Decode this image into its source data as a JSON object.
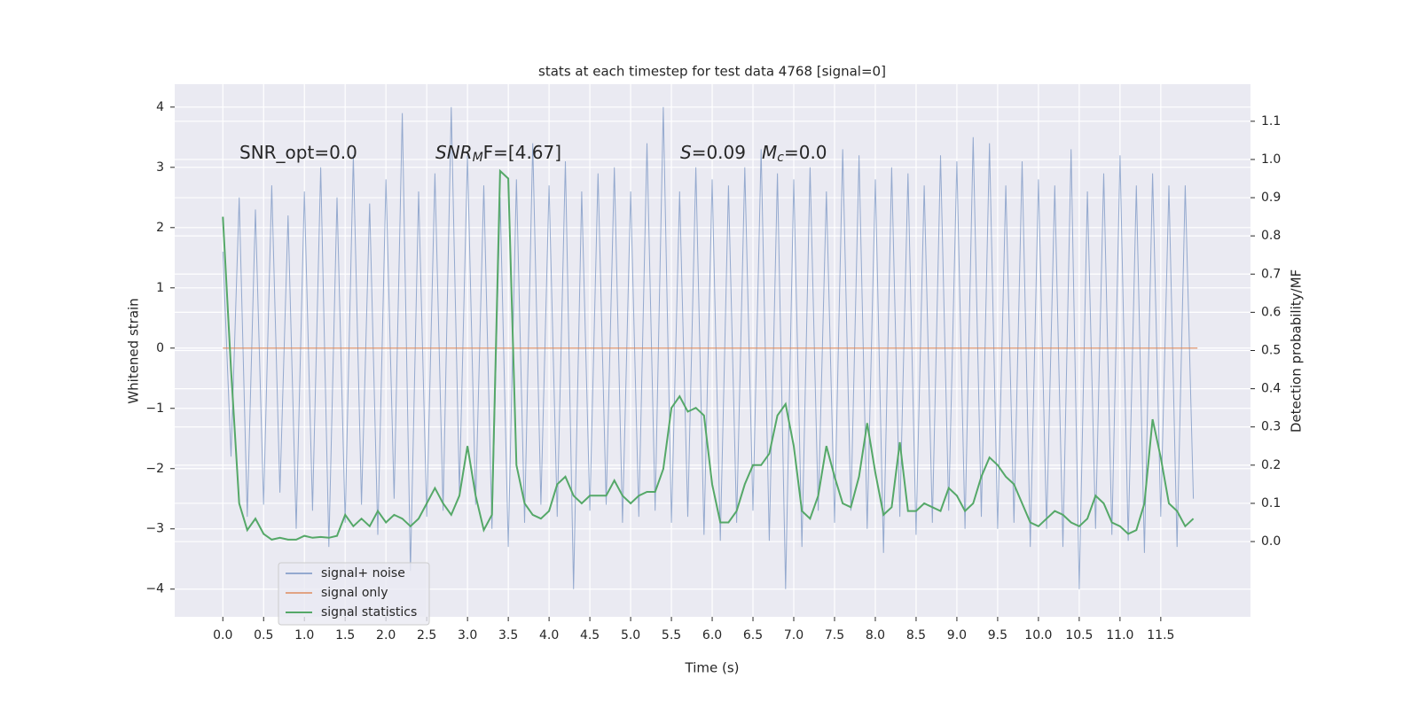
{
  "chart_data": {
    "type": "line",
    "title": "stats at each timestep for test data 4768 [signal=0]",
    "xlabel": "Time (s)",
    "ylabel": "Whitened strain",
    "y2label": "Detection probability/MF",
    "annotations": [
      {
        "main": "SNR_opt=0.0"
      },
      {
        "main": "SNR",
        "sub": "M",
        "rest": "F=[4.67]"
      },
      {
        "main": "S",
        "rest": "=0.09"
      },
      {
        "main": "M",
        "sub": "c",
        "rest": "=0.0"
      }
    ],
    "x": [
      0,
      0.1,
      0.2,
      0.3,
      0.4,
      0.5,
      0.6,
      0.7,
      0.8,
      0.9,
      1,
      1.1,
      1.2,
      1.3,
      1.4,
      1.5,
      1.6,
      1.7,
      1.8,
      1.9,
      2,
      2.1,
      2.2,
      2.3,
      2.4,
      2.5,
      2.6,
      2.7,
      2.8,
      2.9,
      3,
      3.1,
      3.2,
      3.3,
      3.4,
      3.5,
      3.6,
      3.7,
      3.8,
      3.9,
      4,
      4.1,
      4.2,
      4.3,
      4.4,
      4.5,
      4.6,
      4.7,
      4.8,
      4.9,
      5,
      5.1,
      5.2,
      5.3,
      5.4,
      5.5,
      5.6,
      5.7,
      5.8,
      5.9,
      6,
      6.1,
      6.2,
      6.3,
      6.4,
      6.5,
      6.6,
      6.7,
      6.8,
      6.9,
      7,
      7.1,
      7.2,
      7.3,
      7.4,
      7.5,
      7.6,
      7.7,
      7.8,
      7.9,
      8,
      8.1,
      8.2,
      8.3,
      8.4,
      8.5,
      8.6,
      8.7,
      8.8,
      8.9,
      9,
      9.1,
      9.2,
      9.3,
      9.4,
      9.5,
      9.6,
      9.7,
      9.8,
      9.9,
      10,
      10.1,
      10.2,
      10.3,
      10.4,
      10.5,
      10.6,
      10.7,
      10.8,
      10.9,
      11,
      11.1,
      11.2,
      11.3,
      11.4,
      11.5,
      11.6,
      11.7,
      11.8,
      11.9
    ],
    "series": [
      {
        "name": "signal+ noise",
        "color": "#4c72b0",
        "values": [
          1.6,
          -1.8,
          2.5,
          -2.8,
          2.3,
          -2.6,
          2.7,
          -2.4,
          2.2,
          -3.0,
          2.6,
          -2.7,
          3.0,
          -3.3,
          2.5,
          -2.9,
          3.2,
          -2.6,
          2.4,
          -3.1,
          2.8,
          -2.5,
          3.9,
          -3.7,
          2.6,
          -2.8,
          2.9,
          -2.7,
          4.0,
          -2.4,
          3.2,
          -2.6,
          2.7,
          -3.0,
          2.5,
          -3.3,
          2.8,
          -2.9,
          3.4,
          -2.6,
          2.7,
          -2.8,
          3.1,
          -4.0,
          2.6,
          -2.7,
          2.9,
          -2.6,
          3.0,
          -2.9,
          2.6,
          -2.8,
          3.4,
          -2.7,
          4.0,
          -2.9,
          2.6,
          -2.8,
          3.0,
          -3.1,
          2.8,
          -3.2,
          2.7,
          -2.9,
          3.0,
          -2.7,
          3.3,
          -3.2,
          2.9,
          -4.0,
          2.8,
          -3.3,
          3.0,
          -2.7,
          2.6,
          -2.9,
          3.3,
          -2.7,
          3.2,
          -3.0,
          2.8,
          -3.4,
          3.0,
          -2.8,
          2.9,
          -3.1,
          2.7,
          -2.9,
          3.2,
          -2.7,
          3.1,
          -3.0,
          3.5,
          -2.8,
          3.4,
          -3.0,
          2.7,
          -2.9,
          3.1,
          -3.3,
          2.8,
          -3.0,
          2.7,
          -3.3,
          3.3,
          -4.0,
          2.6,
          -3.0,
          2.9,
          -3.1,
          3.2,
          -3.2,
          2.7,
          -3.4,
          2.9,
          -2.8,
          2.7,
          -3.3,
          2.7,
          -2.5
        ]
      },
      {
        "name": "signal only",
        "color": "#dd8452",
        "x": [
          0,
          11.95
        ],
        "values": [
          0,
          0
        ]
      },
      {
        "name": "signal statistics",
        "color": "#55a868",
        "axis": "y2",
        "values": [
          0.85,
          0.45,
          0.1,
          0.03,
          0.06,
          0.02,
          0.005,
          0.01,
          0.005,
          0.005,
          0.015,
          0.01,
          0.012,
          0.01,
          0.015,
          0.07,
          0.04,
          0.06,
          0.04,
          0.08,
          0.05,
          0.07,
          0.06,
          0.04,
          0.06,
          0.1,
          0.14,
          0.1,
          0.07,
          0.12,
          0.25,
          0.12,
          0.03,
          0.07,
          0.97,
          0.95,
          0.2,
          0.1,
          0.07,
          0.06,
          0.08,
          0.15,
          0.17,
          0.12,
          0.1,
          0.12,
          0.12,
          0.12,
          0.16,
          0.12,
          0.1,
          0.12,
          0.13,
          0.13,
          0.19,
          0.35,
          0.38,
          0.34,
          0.35,
          0.33,
          0.15,
          0.05,
          0.05,
          0.08,
          0.15,
          0.2,
          0.2,
          0.23,
          0.33,
          0.36,
          0.25,
          0.08,
          0.06,
          0.12,
          0.25,
          0.17,
          0.1,
          0.09,
          0.17,
          0.31,
          0.18,
          0.07,
          0.09,
          0.26,
          0.08,
          0.08,
          0.1,
          0.09,
          0.08,
          0.14,
          0.12,
          0.08,
          0.1,
          0.17,
          0.22,
          0.2,
          0.17,
          0.15,
          0.1,
          0.05,
          0.04,
          0.06,
          0.08,
          0.07,
          0.05,
          0.04,
          0.06,
          0.12,
          0.1,
          0.05,
          0.04,
          0.02,
          0.03,
          0.1,
          0.32,
          0.22,
          0.1,
          0.08,
          0.04,
          0.06
        ]
      }
    ],
    "xlim": [
      -0.59,
      12.6
    ],
    "ylim": [
      -4.46,
      4.38
    ],
    "y2lim": [
      -0.197,
      1.197
    ],
    "xticks": [
      {
        "value": 0,
        "label": "0.0"
      },
      0.5,
      {
        "value": 1,
        "label": "1.0"
      },
      1.5,
      {
        "value": 2,
        "label": "2.0"
      },
      2.5,
      {
        "value": 3,
        "label": "3.0"
      },
      3.5,
      {
        "value": 4,
        "label": "4.0"
      },
      4.5,
      {
        "value": 5,
        "label": "5.0"
      },
      5.5,
      {
        "value": 6,
        "label": "6.0"
      },
      6.5,
      {
        "value": 7,
        "label": "7.0"
      },
      7.5,
      {
        "value": 8,
        "label": "8.0"
      },
      8.5,
      {
        "value": 9,
        "label": "9.0"
      },
      9.5,
      {
        "value": 10,
        "label": "10.0"
      },
      10.5,
      {
        "value": 11,
        "label": "11.0"
      },
      11.5
    ],
    "yticks": [
      {
        "value": -4,
        "label": "−4"
      },
      {
        "value": -3,
        "label": "−3"
      },
      {
        "value": -2,
        "label": "−2"
      },
      {
        "value": -1,
        "label": "−1"
      },
      0,
      1,
      2,
      3,
      4
    ],
    "y2ticks": [
      {
        "value": 0,
        "label": "0.0"
      },
      0.1,
      0.2,
      0.3,
      0.4,
      0.5,
      0.6,
      0.7,
      0.8,
      0.9,
      {
        "value": 1,
        "label": "1.0"
      },
      1.1
    ],
    "grid": true,
    "legend": "lower left"
  }
}
